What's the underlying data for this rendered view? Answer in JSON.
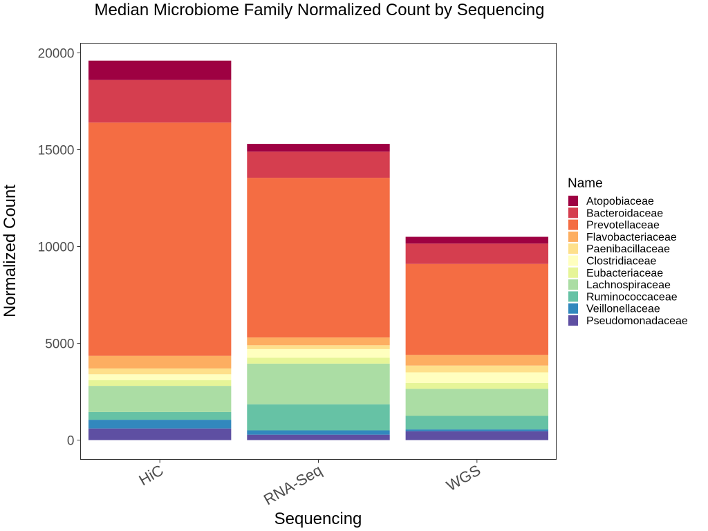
{
  "chart_data": {
    "type": "bar",
    "stacked": true,
    "title": "Median Microbiome Family Normalized Count by Sequencing",
    "xlabel": "Sequencing",
    "ylabel": "Normalized Count",
    "categories": [
      "HiC",
      "RNA-Seq",
      "WGS"
    ],
    "ylim": [
      -1000,
      20500
    ],
    "yticks": [
      0,
      5000,
      10000,
      15000,
      20000
    ],
    "grid": false,
    "legend": {
      "title": "Name",
      "position": "right"
    },
    "series": [
      {
        "name": "Pseudomonadaceae",
        "color": "#5E4FA2",
        "values": [
          600,
          280,
          460
        ]
      },
      {
        "name": "Veillonellaceae",
        "color": "#3288BD",
        "values": [
          450,
          220,
          90
        ]
      },
      {
        "name": "Ruminococcaceae",
        "color": "#66C2A5",
        "values": [
          400,
          1350,
          700
        ]
      },
      {
        "name": "Lachnospiraceae",
        "color": "#ABDDA4",
        "values": [
          1350,
          2100,
          1400
        ]
      },
      {
        "name": "Eubacteriaceae",
        "color": "#E6F598",
        "values": [
          300,
          300,
          300
        ]
      },
      {
        "name": "Clostridiaceae",
        "color": "#FFFFBF",
        "values": [
          300,
          450,
          550
        ]
      },
      {
        "name": "Paenibacillaceae",
        "color": "#FEE08B",
        "values": [
          300,
          200,
          350
        ]
      },
      {
        "name": "Flavobacteriaceae",
        "color": "#FDAE61",
        "values": [
          650,
          400,
          550
        ]
      },
      {
        "name": "Prevotellaceae",
        "color": "#F46D43",
        "values": [
          12050,
          8250,
          4700
        ]
      },
      {
        "name": "Bacteroidaceae",
        "color": "#D53E4F",
        "values": [
          2200,
          1350,
          1050
        ]
      },
      {
        "name": "Atopobiaceae",
        "color": "#9E0142",
        "values": [
          1000,
          400,
          350
        ]
      }
    ],
    "legend_order": [
      "Atopobiaceae",
      "Bacteroidaceae",
      "Prevotellaceae",
      "Flavobacteriaceae",
      "Paenibacillaceae",
      "Clostridiaceae",
      "Eubacteriaceae",
      "Lachnospiraceae",
      "Ruminococcaceae",
      "Veillonellaceae",
      "Pseudomonadaceae"
    ]
  }
}
